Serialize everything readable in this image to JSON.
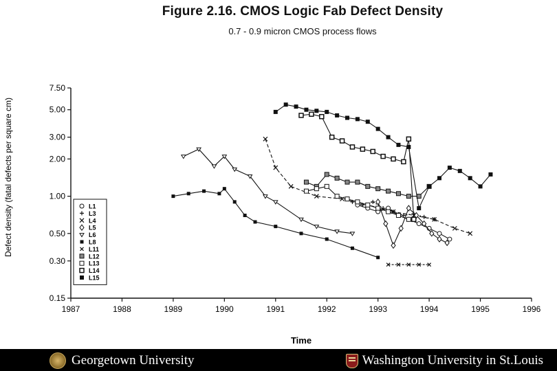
{
  "chart_data": {
    "type": "line",
    "title": "Figure 2.16. CMOS Logic Fab Defect Density",
    "subtitle": "0.7 - 0.9 micron CMOS process flows",
    "xlabel": "Time",
    "ylabel": "Defect density (fatal defects per square cm)",
    "xlim": [
      1987,
      1996
    ],
    "ylim": [
      0.15,
      7.5
    ],
    "y_scale": "log",
    "x_ticks": [
      "1987",
      "1988",
      "1989",
      "1990",
      "1991",
      "1992",
      "1993",
      "1994",
      "1995",
      "1996"
    ],
    "y_ticks": [
      "0.15",
      "0.30",
      "0.50",
      "1.00",
      "2.00",
      "3.00",
      "5.00",
      "7.50"
    ],
    "legend_position": "bottom-left",
    "grid": false,
    "series": [
      {
        "name": "L1",
        "marker": "circle-open",
        "x": [
          1992.6,
          1992.8,
          1993.0,
          1993.2,
          1993.4,
          1993.6,
          1993.8,
          1994.0,
          1994.2,
          1994.4
        ],
        "y": [
          0.85,
          0.8,
          0.75,
          0.8,
          0.7,
          0.65,
          0.6,
          0.55,
          0.5,
          0.45
        ]
      },
      {
        "name": "L3",
        "marker": "plus",
        "x": [
          1992.5,
          1992.7,
          1992.9,
          1993.1,
          1993.3,
          1993.5,
          1993.7,
          1993.9,
          1994.1
        ],
        "y": [
          0.9,
          0.85,
          0.9,
          0.8,
          0.75,
          0.7,
          0.72,
          0.68,
          0.65
        ]
      },
      {
        "name": "L4",
        "marker": "x",
        "x": [
          1990.8,
          1991.0,
          1991.3,
          1991.8,
          1992.3,
          1992.8,
          1993.3,
          1993.7,
          1994.1,
          1994.5,
          1994.8
        ],
        "y": [
          2.9,
          1.7,
          1.2,
          1.0,
          0.95,
          0.85,
          0.75,
          0.7,
          0.65,
          0.55,
          0.5
        ]
      },
      {
        "name": "L5",
        "marker": "diamond-open",
        "x": [
          1993.0,
          1993.15,
          1993.3,
          1993.45,
          1993.6,
          1993.75,
          1993.9,
          1994.05,
          1994.2,
          1994.35
        ],
        "y": [
          0.9,
          0.6,
          0.4,
          0.55,
          0.8,
          0.7,
          0.6,
          0.5,
          0.45,
          0.42
        ]
      },
      {
        "name": "L6",
        "marker": "triangle-down-open",
        "x": [
          1989.2,
          1989.5,
          1989.8,
          1990.0,
          1990.2,
          1990.5,
          1990.8,
          1991.0,
          1991.5,
          1991.8,
          1992.2,
          1992.5
        ],
        "y": [
          2.1,
          2.4,
          1.75,
          2.1,
          1.65,
          1.45,
          1.0,
          0.9,
          0.65,
          0.57,
          0.52,
          0.5
        ]
      },
      {
        "name": "L8",
        "marker": "square-filled",
        "x": [
          1989.0,
          1989.3,
          1989.6,
          1989.9,
          1990.0,
          1990.2,
          1990.4,
          1990.6,
          1991.0,
          1991.5,
          1992.0,
          1992.5,
          1993.0
        ],
        "y": [
          1.0,
          1.05,
          1.1,
          1.05,
          1.15,
          0.9,
          0.7,
          0.62,
          0.57,
          0.5,
          0.45,
          0.38,
          0.32
        ]
      },
      {
        "name": "L11",
        "marker": "x-small",
        "x": [
          1993.2,
          1993.4,
          1993.6,
          1993.8,
          1994.0
        ],
        "y": [
          0.28,
          0.28,
          0.28,
          0.28,
          0.28
        ]
      },
      {
        "name": "L12",
        "marker": "square-hatched",
        "x": [
          1991.6,
          1991.8,
          1992.0,
          1992.2,
          1992.4,
          1992.6,
          1992.8,
          1993.0,
          1993.2,
          1993.4,
          1993.6,
          1993.8,
          1994.0
        ],
        "y": [
          1.3,
          1.2,
          1.5,
          1.4,
          1.3,
          1.3,
          1.2,
          1.15,
          1.1,
          1.05,
          1.0,
          1.0,
          1.2
        ]
      },
      {
        "name": "L13",
        "marker": "square-open",
        "x": [
          1991.6,
          1991.8,
          1992.0,
          1992.2,
          1992.4,
          1992.6,
          1992.8,
          1993.0,
          1993.2,
          1993.4,
          1993.6
        ],
        "y": [
          1.1,
          1.15,
          1.2,
          1.0,
          0.95,
          0.9,
          0.85,
          0.8,
          0.75,
          0.7,
          0.65
        ]
      },
      {
        "name": "L14",
        "marker": "square-dotted",
        "x": [
          1991.5,
          1991.7,
          1991.9,
          1992.1,
          1992.3,
          1992.5,
          1992.7,
          1992.9,
          1993.1,
          1993.3,
          1993.5,
          1993.6,
          1993.7
        ],
        "y": [
          4.5,
          4.6,
          4.4,
          3.0,
          2.8,
          2.5,
          2.4,
          2.3,
          2.1,
          2.0,
          1.9,
          2.9,
          0.65
        ]
      },
      {
        "name": "L15",
        "marker": "square-filled-bold",
        "x": [
          1991.0,
          1991.2,
          1991.4,
          1991.6,
          1991.8,
          1992.0,
          1992.2,
          1992.4,
          1992.6,
          1992.8,
          1993.0,
          1993.2,
          1993.4,
          1993.6,
          1993.8,
          1994.0,
          1994.2,
          1994.4,
          1994.6,
          1994.8,
          1995.0,
          1995.2
        ],
        "y": [
          4.8,
          5.5,
          5.3,
          5.0,
          4.9,
          4.8,
          4.5,
          4.3,
          4.2,
          4.0,
          3.5,
          3.0,
          2.6,
          2.5,
          0.8,
          1.2,
          1.4,
          1.7,
          1.6,
          1.4,
          1.2,
          1.5
        ]
      }
    ]
  },
  "footer": {
    "left_text": "Georgetown University",
    "right_text": "Washington University in St.Louis"
  }
}
